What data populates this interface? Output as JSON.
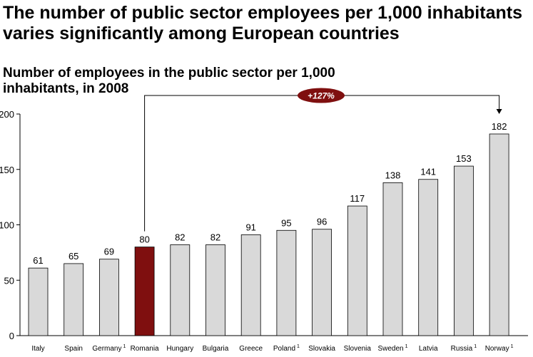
{
  "headline": "The number of public sector employees per 1,000 inhabitants varies significantly among European countries",
  "chart_data": {
    "type": "bar",
    "title": "Number of employees in the public sector per 1,000 inhabitants, in 2008",
    "categories": [
      "Italy",
      "Spain",
      "Germany",
      "Romania",
      "Hungary",
      "Bulgaria",
      "Greece",
      "Poland",
      "Slovakia",
      "Slovenia",
      "Sweden",
      "Latvia",
      "Russia",
      "Norway"
    ],
    "footnote_marks": [
      "",
      "",
      "1",
      "",
      "",
      "",
      "",
      "1",
      "",
      "",
      "1",
      "",
      "1",
      "1"
    ],
    "values": [
      61,
      65,
      69,
      80,
      82,
      82,
      91,
      95,
      96,
      117,
      138,
      141,
      153,
      182
    ],
    "highlight_category": "Romania",
    "ylim": [
      0,
      200
    ],
    "yticks": [
      "0",
      "50",
      "100",
      "150",
      "200"
    ],
    "xlabel": "",
    "ylabel": "",
    "grid": false,
    "annotation": {
      "text": "+127%",
      "from": "Romania",
      "to": "Norway"
    },
    "colors": {
      "bar": "#d9d9d9",
      "bar_border": "#000000",
      "highlight": "#7f0f0f",
      "badge": "#7f0f0f",
      "badge_text": "#ffffff"
    }
  }
}
